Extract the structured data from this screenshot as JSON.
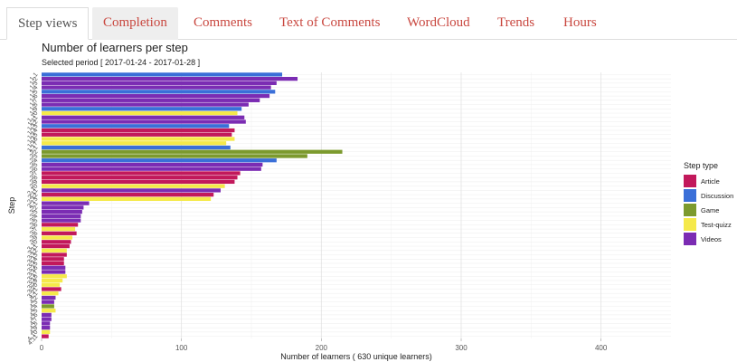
{
  "tabs": [
    {
      "label": "Step views",
      "active": true
    },
    {
      "label": "Completion",
      "active": false
    },
    {
      "label": "Comments",
      "active": false
    },
    {
      "label": "Text of Comments",
      "active": false
    },
    {
      "label": "WordCloud",
      "active": false
    },
    {
      "label": "Trends",
      "active": false
    },
    {
      "label": "Hours",
      "active": false
    }
  ],
  "chart_data": {
    "type": "bar",
    "orientation": "horizontal",
    "title": "Number of learners per step",
    "subtitle": "Selected period [ 2017-01-24 - 2017-01-28 ]",
    "xlabel": "Number of learners ( 630 unique learners)",
    "ylabel": "Step",
    "xlim": [
      0,
      450
    ],
    "xticks": [
      0,
      100,
      200,
      300,
      400
    ],
    "grid": true,
    "legend_title": "Step type",
    "legend_position": "right",
    "legend": [
      {
        "name": "Article",
        "color": "#c2185b"
      },
      {
        "name": "Discussion",
        "color": "#3a6fd8"
      },
      {
        "name": "Game",
        "color": "#7c9a2e"
      },
      {
        "name": "Test-quizz",
        "color": "#f5e94a"
      },
      {
        "name": "Videos",
        "color": "#7b2cb3"
      }
    ],
    "type_colors": {
      "Article": "#c2185b",
      "Discussion": "#3a6fd8",
      "Game": "#7c9a2e",
      "Test-quizz": "#f5e94a",
      "Videos": "#7b2cb3"
    },
    "bars": [
      {
        "step": "1.1",
        "type": "Discussion",
        "value": 172
      },
      {
        "step": "1.2",
        "type": "Videos",
        "value": 183
      },
      {
        "step": "1.3",
        "type": "Videos",
        "value": 168
      },
      {
        "step": "1.4",
        "type": "Videos",
        "value": 164
      },
      {
        "step": "1.5",
        "type": "Discussion",
        "value": 167
      },
      {
        "step": "1.6",
        "type": "Videos",
        "value": 163
      },
      {
        "step": "1.7",
        "type": "Videos",
        "value": 156
      },
      {
        "step": "1.8",
        "type": "Videos",
        "value": 148
      },
      {
        "step": "1.9",
        "type": "Discussion",
        "value": 143
      },
      {
        "step": "1.10",
        "type": "Test-quizz",
        "value": 140
      },
      {
        "step": "1.11",
        "type": "Videos",
        "value": 145
      },
      {
        "step": "1.12",
        "type": "Videos",
        "value": 146
      },
      {
        "step": "1.13",
        "type": "Discussion",
        "value": 134
      },
      {
        "step": "1.14",
        "type": "Article",
        "value": 138
      },
      {
        "step": "1.15",
        "type": "Article",
        "value": 136
      },
      {
        "step": "1.16",
        "type": "Test-quizz",
        "value": 138
      },
      {
        "step": "1.17",
        "type": "Test-quizz",
        "value": 132
      },
      {
        "step": "2.1",
        "type": "Discussion",
        "value": 135
      },
      {
        "step": "2.2",
        "type": "Game",
        "value": 215
      },
      {
        "step": "2.3",
        "type": "Game",
        "value": 190
      },
      {
        "step": "2.4",
        "type": "Discussion",
        "value": 168
      },
      {
        "step": "2.5",
        "type": "Videos",
        "value": 158
      },
      {
        "step": "2.6",
        "type": "Videos",
        "value": 157
      },
      {
        "step": "2.7",
        "type": "Article",
        "value": 142
      },
      {
        "step": "2.8",
        "type": "Article",
        "value": 140
      },
      {
        "step": "2.9",
        "type": "Article",
        "value": 138
      },
      {
        "step": "2.10",
        "type": "Test-quizz",
        "value": 131
      },
      {
        "step": "2.11",
        "type": "Videos",
        "value": 128
      },
      {
        "step": "2.12",
        "type": "Article",
        "value": 123
      },
      {
        "step": "2.13",
        "type": "Test-quizz",
        "value": 121
      },
      {
        "step": "3.1",
        "type": "Videos",
        "value": 34
      },
      {
        "step": "3.2",
        "type": "Videos",
        "value": 30
      },
      {
        "step": "3.3",
        "type": "Videos",
        "value": 29
      },
      {
        "step": "3.4",
        "type": "Videos",
        "value": 28
      },
      {
        "step": "3.5",
        "type": "Videos",
        "value": 28
      },
      {
        "step": "3.6",
        "type": "Article",
        "value": 26
      },
      {
        "step": "3.7",
        "type": "Test-quizz",
        "value": 24
      },
      {
        "step": "3.8",
        "type": "Article",
        "value": 25
      },
      {
        "step": "3.9",
        "type": "Test-quizz",
        "value": 22
      },
      {
        "step": "3.10",
        "type": "Article",
        "value": 21
      },
      {
        "step": "3.11",
        "type": "Article",
        "value": 20
      },
      {
        "step": "3.12",
        "type": "Test-quizz",
        "value": 18
      },
      {
        "step": "3.13",
        "type": "Article",
        "value": 18
      },
      {
        "step": "3.14",
        "type": "Article",
        "value": 16
      },
      {
        "step": "3.15",
        "type": "Article",
        "value": 16
      },
      {
        "step": "3.16",
        "type": "Videos",
        "value": 17
      },
      {
        "step": "3.17",
        "type": "Videos",
        "value": 17
      },
      {
        "step": "3.18",
        "type": "Test-quizz",
        "value": 18
      },
      {
        "step": "3.19",
        "type": "Test-quizz",
        "value": 15
      },
      {
        "step": "3.20",
        "type": "Test-quizz",
        "value": 13
      },
      {
        "step": "3.21",
        "type": "Article",
        "value": 14
      },
      {
        "step": "4.1",
        "type": "Test-quizz",
        "value": 12
      },
      {
        "step": "4.2",
        "type": "Videos",
        "value": 10
      },
      {
        "step": "4.3",
        "type": "Videos",
        "value": 9
      },
      {
        "step": "4.4",
        "type": "Game",
        "value": 9
      },
      {
        "step": "4.5",
        "type": "Test-quizz",
        "value": 10
      },
      {
        "step": "4.6",
        "type": "Videos",
        "value": 7
      },
      {
        "step": "4.7",
        "type": "Videos",
        "value": 7
      },
      {
        "step": "4.8",
        "type": "Videos",
        "value": 6
      },
      {
        "step": "4.9",
        "type": "Videos",
        "value": 6
      },
      {
        "step": "4.10",
        "type": "Test-quizz",
        "value": 6
      },
      {
        "step": "4.11",
        "type": "Article",
        "value": 5
      }
    ]
  }
}
